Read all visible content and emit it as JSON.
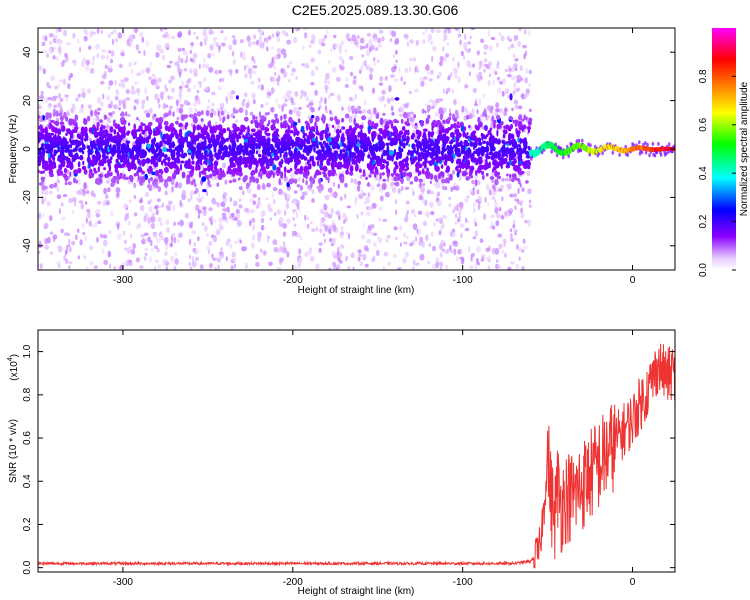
{
  "title": "C2E5.2025.089.13.30.G06",
  "chart_data": [
    {
      "type": "heatmap",
      "xlabel": "Height of straight line (km)",
      "ylabel": "Frequency (Hz)",
      "xlim": [
        -350,
        25
      ],
      "ylim": [
        -50,
        50
      ],
      "xticks": [
        -300,
        -200,
        -100,
        0
      ],
      "yticks": [
        -40,
        -20,
        0,
        20,
        40
      ],
      "colorbar": {
        "label": "Normalized spectral amplitude",
        "range": [
          0,
          1
        ],
        "ticks": [
          "0.0",
          "0.2",
          "0.4",
          "0.6",
          "0.8"
        ],
        "tick_values": [
          0.0,
          0.2,
          0.4,
          0.6,
          0.8
        ],
        "colors": [
          "#ffffff",
          "#8a00ff",
          "#0000ff",
          "#00ffff",
          "#00ff00",
          "#ffff00",
          "#ff8000",
          "#ff0000",
          "#ff00ff"
        ]
      },
      "features": {
        "noise_region_x": [
          -350,
          -60
        ],
        "signal_region_x": [
          -60,
          25
        ],
        "noise_band_halfwidth_hz": 10,
        "signal_centerline_hz": 0
      }
    },
    {
      "type": "line",
      "xlabel": "Height of straight line (km)",
      "ylabel": "SNR (10 * v/v)",
      "yscale_label": "(x10",
      "yscale_exponent": "4",
      "xlim": [
        -350,
        25
      ],
      "ylim": [
        -0.02,
        1.1
      ],
      "xticks": [
        -300,
        -200,
        -100,
        0
      ],
      "yticks": [
        0.0,
        0.2,
        0.4,
        0.6,
        0.8,
        1.0
      ],
      "ytick_labels": [
        "0.0",
        "0.2",
        "0.4",
        "0.6",
        "0.8",
        "1.0"
      ],
      "series": [
        {
          "color": "#ee3333",
          "x": [
            -350,
            -300,
            -250,
            -200,
            -150,
            -100,
            -70,
            -60,
            -55,
            -52,
            -50,
            -48,
            -46,
            -44,
            -42,
            -40,
            -35,
            -30,
            -25,
            -20,
            -15,
            -10,
            -5,
            0,
            5,
            10,
            15,
            20,
            25
          ],
          "y": [
            0.02,
            0.02,
            0.02,
            0.02,
            0.02,
            0.02,
            0.02,
            0.03,
            0.08,
            0.3,
            0.55,
            0.35,
            0.25,
            0.4,
            0.3,
            0.35,
            0.35,
            0.4,
            0.45,
            0.5,
            0.55,
            0.6,
            0.65,
            0.7,
            0.78,
            0.85,
            0.95,
            0.9,
            0.92
          ]
        }
      ]
    }
  ]
}
